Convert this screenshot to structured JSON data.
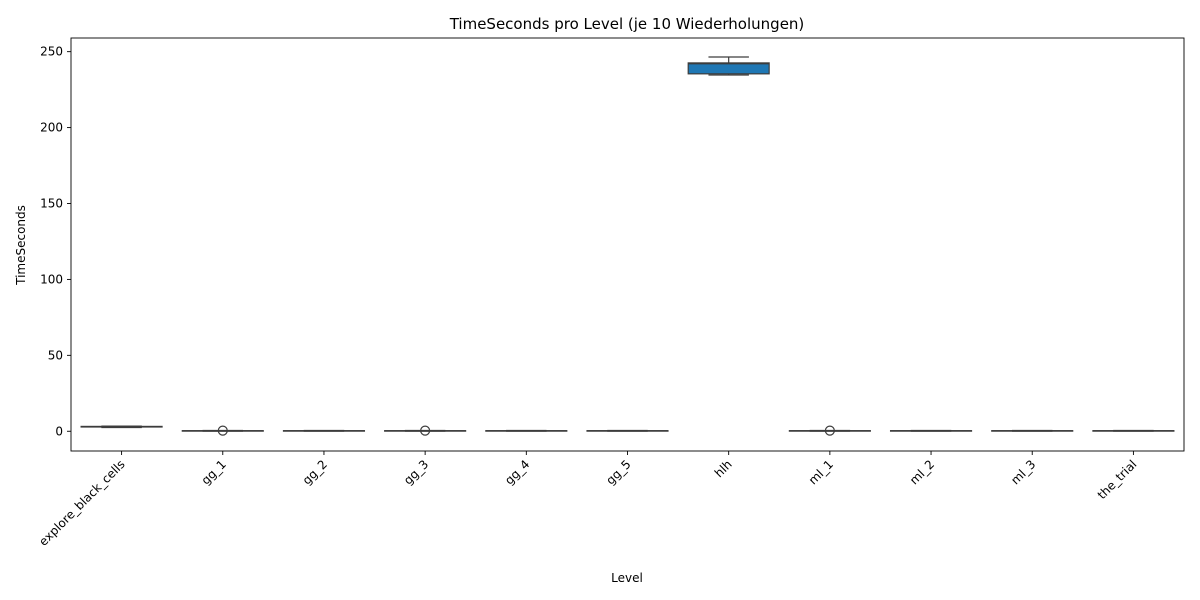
{
  "chart_data": {
    "type": "box",
    "title": "TimeSeconds pro Level (je 10 Wiederholungen)",
    "xlabel": "Level",
    "ylabel": "TimeSeconds",
    "ylim": [
      -13,
      259
    ],
    "yticks": [
      0,
      50,
      100,
      150,
      200,
      250
    ],
    "grid": false,
    "box_color": "#1f77b4",
    "line_color": "#3d3d3d",
    "categories": [
      "explore_black_cells",
      "gg_1",
      "gg_2",
      "gg_3",
      "gg_4",
      "gg_5",
      "hlh",
      "ml_1",
      "ml_2",
      "ml_3",
      "the_trial"
    ],
    "boxes": [
      {
        "min": 2.5,
        "q1": 2.8,
        "median": 3.0,
        "q3": 3.2,
        "max": 3.4,
        "outliers": []
      },
      {
        "min": 0.1,
        "q1": 0.2,
        "median": 0.3,
        "q3": 0.4,
        "max": 0.5,
        "outliers": [
          0.4
        ]
      },
      {
        "min": 0.1,
        "q1": 0.2,
        "median": 0.3,
        "q3": 0.4,
        "max": 0.5,
        "outliers": []
      },
      {
        "min": 0.1,
        "q1": 0.2,
        "median": 0.3,
        "q3": 0.4,
        "max": 0.5,
        "outliers": [
          0.4
        ]
      },
      {
        "min": 0.1,
        "q1": 0.2,
        "median": 0.3,
        "q3": 0.4,
        "max": 0.5,
        "outliers": []
      },
      {
        "min": 0.1,
        "q1": 0.2,
        "median": 0.3,
        "q3": 0.4,
        "max": 0.5,
        "outliers": []
      },
      {
        "min": 234.6,
        "q1": 235.4,
        "median": 242.0,
        "q3": 242.6,
        "max": 246.5,
        "outliers": []
      },
      {
        "min": 0.1,
        "q1": 0.2,
        "median": 0.3,
        "q3": 0.4,
        "max": 0.5,
        "outliers": [
          0.4
        ]
      },
      {
        "min": 0.1,
        "q1": 0.2,
        "median": 0.3,
        "q3": 0.4,
        "max": 0.5,
        "outliers": []
      },
      {
        "min": 0.1,
        "q1": 0.2,
        "median": 0.3,
        "q3": 0.4,
        "max": 0.5,
        "outliers": []
      },
      {
        "min": 0.1,
        "q1": 0.2,
        "median": 0.3,
        "q3": 0.4,
        "max": 0.5,
        "outliers": []
      }
    ]
  }
}
